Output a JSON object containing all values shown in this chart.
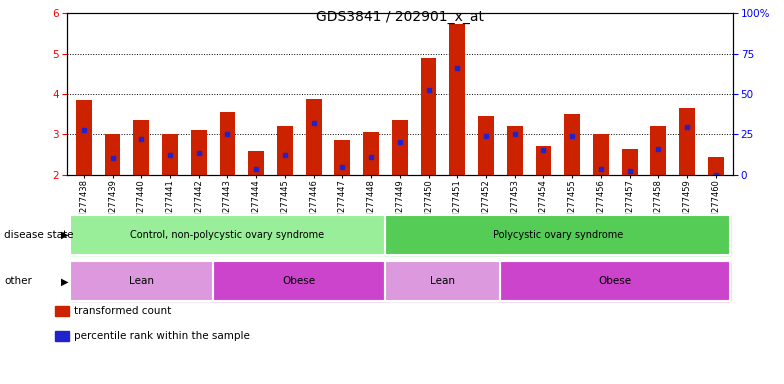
{
  "title": "GDS3841 / 202901_x_at",
  "samples": [
    "GSM277438",
    "GSM277439",
    "GSM277440",
    "GSM277441",
    "GSM277442",
    "GSM277443",
    "GSM277444",
    "GSM277445",
    "GSM277446",
    "GSM277447",
    "GSM277448",
    "GSM277449",
    "GSM277450",
    "GSM277451",
    "GSM277452",
    "GSM277453",
    "GSM277454",
    "GSM277455",
    "GSM277456",
    "GSM277457",
    "GSM277458",
    "GSM277459",
    "GSM277460"
  ],
  "transformed_count": [
    3.85,
    3.0,
    3.35,
    3.02,
    3.1,
    3.55,
    2.6,
    3.2,
    3.88,
    2.85,
    3.05,
    3.35,
    4.9,
    5.75,
    3.45,
    3.2,
    2.72,
    3.5,
    3.02,
    2.65,
    3.2,
    3.65,
    2.45
  ],
  "percentile_rank": [
    3.1,
    2.42,
    2.88,
    2.5,
    2.55,
    3.0,
    2.15,
    2.5,
    3.28,
    2.2,
    2.45,
    2.8,
    4.1,
    4.65,
    2.95,
    3.0,
    2.62,
    2.95,
    2.15,
    2.1,
    2.65,
    3.18,
    2.0
  ],
  "ylim": [
    2,
    6
  ],
  "yticks": [
    2,
    3,
    4,
    5,
    6
  ],
  "right_yticks": [
    0,
    25,
    50,
    75,
    100
  ],
  "bar_color": "#cc2200",
  "marker_color": "#2222cc",
  "plot_bg": "#f0f0f0",
  "disease_state_groups": [
    {
      "label": "Control, non-polycystic ovary syndrome",
      "start": 0,
      "end": 11,
      "color": "#99ee99"
    },
    {
      "label": "Polycystic ovary syndrome",
      "start": 11,
      "end": 23,
      "color": "#55cc55"
    }
  ],
  "other_groups": [
    {
      "label": "Lean",
      "start": 0,
      "end": 5,
      "color": "#dd99dd"
    },
    {
      "label": "Obese",
      "start": 5,
      "end": 11,
      "color": "#cc44cc"
    },
    {
      "label": "Lean",
      "start": 11,
      "end": 15,
      "color": "#dd99dd"
    },
    {
      "label": "Obese",
      "start": 15,
      "end": 23,
      "color": "#cc44cc"
    }
  ],
  "legend_items": [
    {
      "label": "transformed count",
      "color": "#cc2200",
      "marker": "s"
    },
    {
      "label": "percentile rank within the sample",
      "color": "#2222cc",
      "marker": "s"
    }
  ]
}
